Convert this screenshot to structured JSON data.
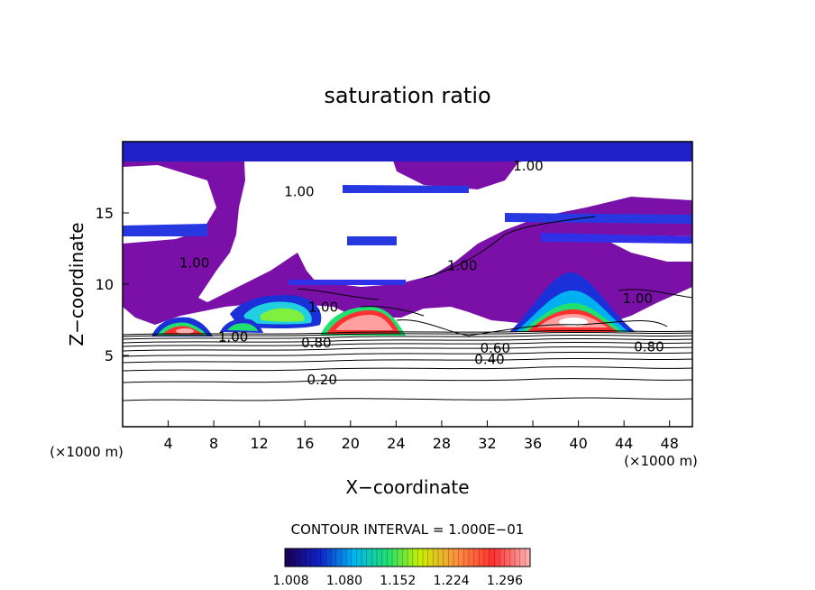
{
  "chart_data": {
    "type": "heatmap",
    "title": "saturation ratio",
    "xlabel": "X−coordinate",
    "ylabel": "Z−coordinate",
    "x_unit_left": "(×1000 m)",
    "x_unit_right": "(×1000 m)",
    "xlim": [
      0,
      50
    ],
    "ylim": [
      0,
      20
    ],
    "x_ticks": [
      4,
      8,
      12,
      16,
      20,
      24,
      28,
      32,
      36,
      40,
      44,
      48
    ],
    "y_ticks": [
      5,
      10,
      15
    ],
    "contour_interval_label": "CONTOUR INTERVAL = 1.000E−01",
    "colorbar": {
      "range": [
        1.0,
        1.33
      ],
      "tick_labels": [
        "1.008",
        "1.080",
        "1.152",
        "1.224",
        "1.296"
      ]
    },
    "contour_labels": [
      {
        "text": "1.00",
        "x": 35.6,
        "z": 18.3
      },
      {
        "text": "1.00",
        "x": 15.5,
        "z": 16.5
      },
      {
        "text": "1.00",
        "x": 6.3,
        "z": 11.5
      },
      {
        "text": "1.00",
        "x": 29.8,
        "z": 11.3
      },
      {
        "text": "1.00",
        "x": 17.6,
        "z": 8.4
      },
      {
        "text": "1.00",
        "x": 9.7,
        "z": 6.3
      },
      {
        "text": "1.00",
        "x": 45.2,
        "z": 9.0
      },
      {
        "text": "0.80",
        "x": 17.0,
        "z": 5.9
      },
      {
        "text": "0.80",
        "x": 46.2,
        "z": 5.6
      },
      {
        "text": "0.60",
        "x": 32.7,
        "z": 5.5
      },
      {
        "text": "0.40",
        "x": 32.2,
        "z": 4.7
      },
      {
        "text": "0.20",
        "x": 17.5,
        "z": 3.3
      }
    ]
  }
}
